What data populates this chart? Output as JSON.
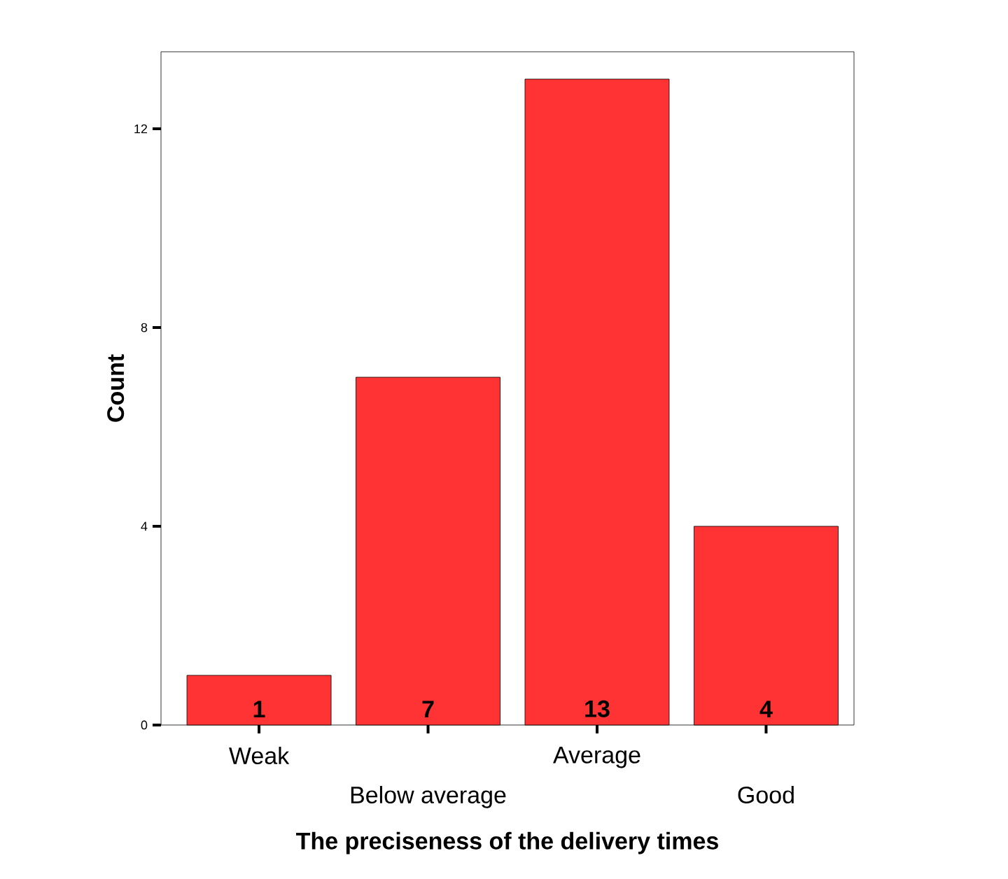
{
  "chart_data": {
    "type": "bar",
    "xlabel": "The preciseness of the delivery times",
    "ylabel": "Count",
    "categories": [
      "Weak",
      "Below average",
      "Average",
      "Good"
    ],
    "values": [
      1,
      7,
      13,
      4
    ],
    "color": "#ff3333",
    "data_labels": true,
    "ylim": [
      0,
      13.55
    ],
    "yticks": [
      0,
      4,
      8,
      12
    ]
  }
}
